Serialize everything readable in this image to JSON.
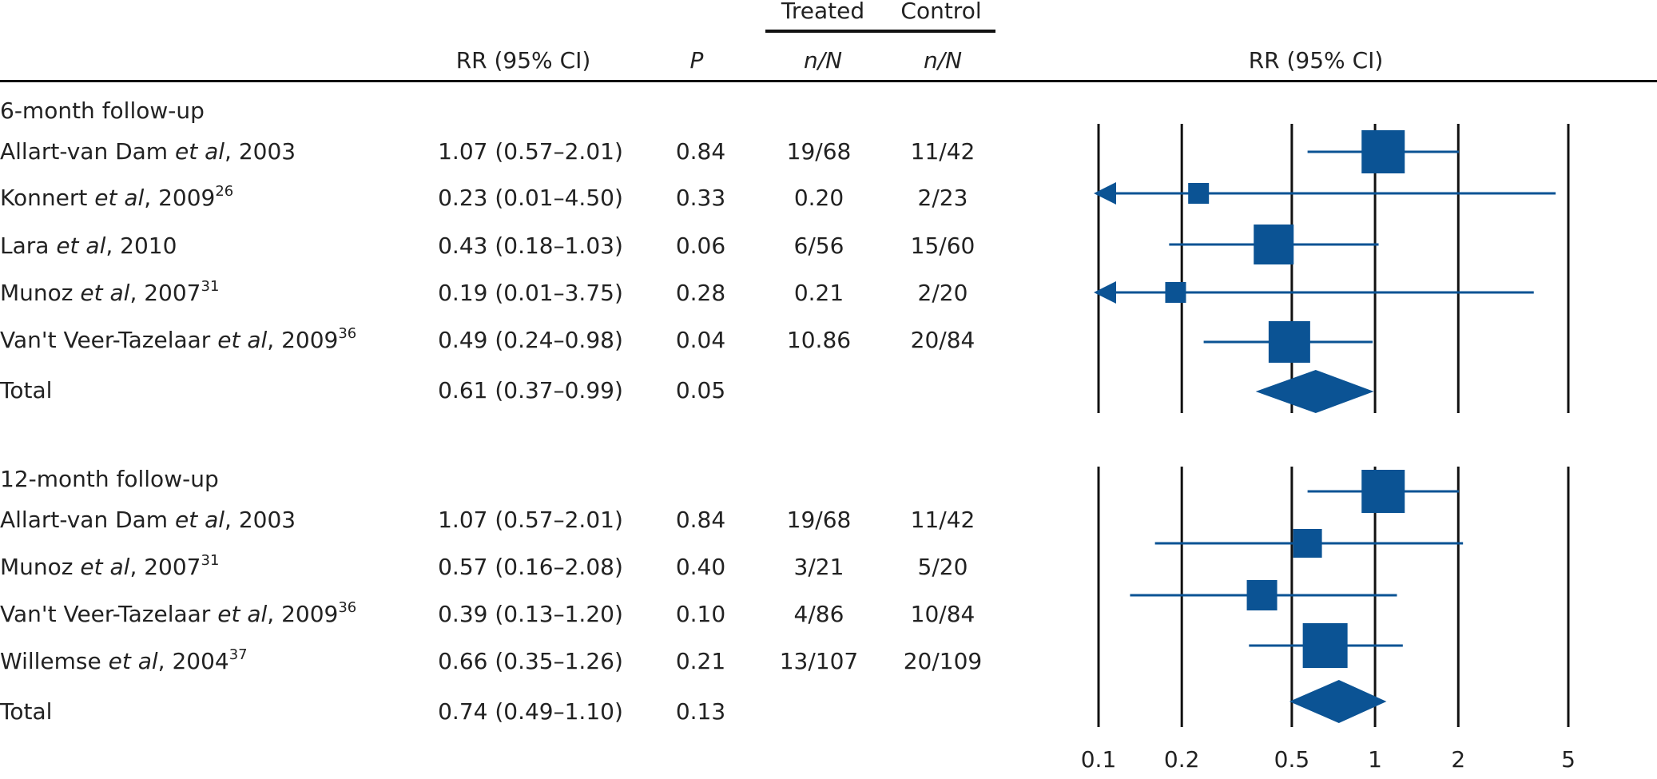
{
  "header": {
    "rr_ci": "RR (95% CI)",
    "p": "P",
    "treated": "Treated",
    "control": "Control",
    "treated_nN": "n/N",
    "control_nN": "n/N",
    "plot_rr_ci": "RR (95% CI)"
  },
  "sections": [
    {
      "title": "6-month follow-up",
      "rows": [
        {
          "pre": "Allart-van Dam ",
          "etal": "et al",
          "post": ", 2003",
          "sup": "",
          "rr_ci": "1.07 (0.57–2.01)",
          "p": "0.84",
          "treated": "19/68",
          "control": "11/42"
        },
        {
          "pre": "Konnert ",
          "etal": "et al",
          "post": ", 2009",
          "sup": "26",
          "rr_ci": "0.23 (0.01–4.50)",
          "p": "0.33",
          "treated": "0.20",
          "control": "2/23"
        },
        {
          "pre": "Lara ",
          "etal": "et al",
          "post": ", 2010",
          "sup": "",
          "rr_ci": "0.43 (0.18–1.03)",
          "p": "0.06",
          "treated": "6/56",
          "control": "15/60"
        },
        {
          "pre": "Munoz ",
          "etal": "et al",
          "post": ", 2007",
          "sup": "31",
          "rr_ci": "0.19 (0.01–3.75)",
          "p": "0.28",
          "treated": "0.21",
          "control": "2/20"
        },
        {
          "pre": "Van't Veer-Tazelaar ",
          "etal": "et al",
          "post": ", 2009",
          "sup": "36",
          "rr_ci": "0.49 (0.24–0.98)",
          "p": "0.04",
          "treated": "10.86",
          "control": "20/84"
        }
      ],
      "total": {
        "label": "Total",
        "rr_ci": "0.61 (0.37–0.99)",
        "p": "0.05"
      }
    },
    {
      "title": "12-month follow-up",
      "rows": [
        {
          "pre": "Allart-van Dam ",
          "etal": "et al",
          "post": ", 2003",
          "sup": "",
          "rr_ci": "1.07 (0.57–2.01)",
          "p": "0.84",
          "treated": "19/68",
          "control": "11/42"
        },
        {
          "pre": "Munoz ",
          "etal": "et al",
          "post": ", 2007",
          "sup": "31",
          "rr_ci": "0.57 (0.16–2.08)",
          "p": "0.40",
          "treated": "3/21",
          "control": "5/20"
        },
        {
          "pre": "Van't Veer-Tazelaar ",
          "etal": "et al",
          "post": ", 2009",
          "sup": "36",
          "rr_ci": "0.39 (0.13–1.20)",
          "p": "0.10",
          "treated": "4/86",
          "control": "10/84"
        },
        {
          "pre": "Willemse ",
          "etal": "et al",
          "post": ", 2004",
          "sup": "37",
          "rr_ci": "0.66 (0.35–1.26)",
          "p": "0.21",
          "treated": "13/107",
          "control": "20/109"
        }
      ],
      "total": {
        "label": "Total",
        "rr_ci": "0.74 (0.49–1.10)",
        "p": "0.13"
      }
    }
  ],
  "chart_data": {
    "type": "forest",
    "x_scale": "log",
    "xlim": [
      0.1,
      5
    ],
    "x_ticks": [
      "0.1",
      "0.2",
      "0.5",
      "1",
      "2",
      "5"
    ],
    "tick_values": [
      0.1,
      0.2,
      0.5,
      1,
      2,
      5
    ],
    "marker_color": "#0b5394",
    "line_color": "#111111",
    "panels": [
      {
        "studies": [
          {
            "rr": 1.07,
            "lo": 0.57,
            "hi": 2.01,
            "weight": 1.0
          },
          {
            "rr": 0.23,
            "lo": 0.01,
            "hi": 4.5,
            "weight": 0.3
          },
          {
            "rr": 0.43,
            "lo": 0.18,
            "hi": 1.03,
            "weight": 0.9
          },
          {
            "rr": 0.19,
            "lo": 0.01,
            "hi": 3.75,
            "weight": 0.3
          },
          {
            "rr": 0.49,
            "lo": 0.24,
            "hi": 0.98,
            "weight": 0.95
          }
        ],
        "total": {
          "rr": 0.61,
          "lo": 0.37,
          "hi": 0.99
        }
      },
      {
        "studies": [
          {
            "rr": 1.07,
            "lo": 0.57,
            "hi": 2.01,
            "weight": 1.0
          },
          {
            "rr": 0.57,
            "lo": 0.16,
            "hi": 2.08,
            "weight": 0.55
          },
          {
            "rr": 0.39,
            "lo": 0.13,
            "hi": 1.2,
            "weight": 0.6
          },
          {
            "rr": 0.66,
            "lo": 0.35,
            "hi": 1.26,
            "weight": 1.05
          }
        ],
        "total": {
          "rr": 0.74,
          "lo": 0.49,
          "hi": 1.1
        }
      }
    ]
  }
}
